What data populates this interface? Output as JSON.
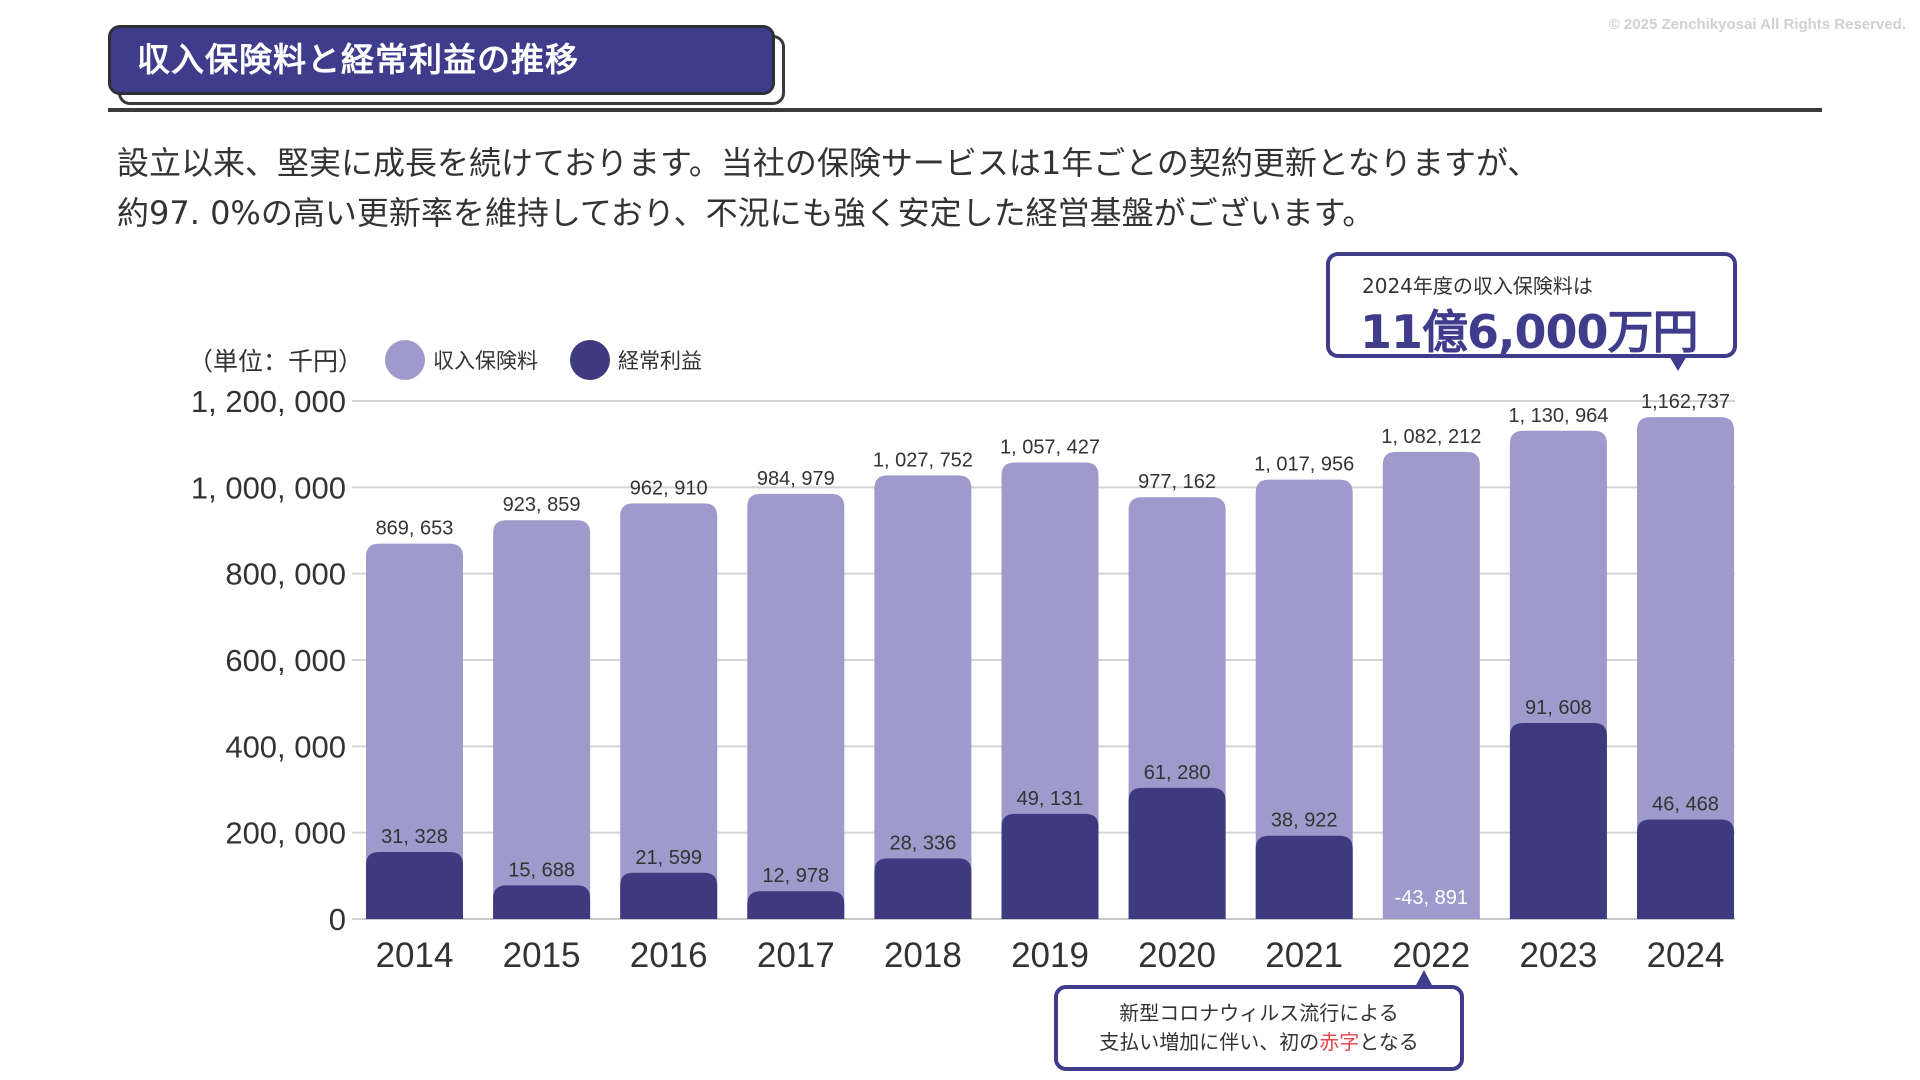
{
  "copyright": "© 2025 Zenchikyosai All Rights Reserved.",
  "title": "収入保険料と経常利益の推移",
  "lead": {
    "line1": "設立以来、堅実に成長を続けております。当社の保険サービスは1年ごとの契約更新となりますが、",
    "line2": "約97. 0%の高い更新率を維持しており、不況にも強く安定した経営基盤がございます。"
  },
  "callout": {
    "sub": "2024年度の収入保険料は",
    "main": "11億6,000万円"
  },
  "note": {
    "line1": "新型コロナウィルス流行による",
    "line2_pre": "支払い増加に伴い、初の",
    "line2_red": "赤字",
    "line2_post": "となる",
    "target_year": "2022"
  },
  "colors": {
    "premium": "#9e9acb",
    "profit": "#3d3a80",
    "accent": "#3f3c8c",
    "deficit_text": "#e6454f",
    "grid": "#d4d4d4",
    "text": "#333333"
  },
  "chart_data": {
    "type": "bar",
    "title": "収入保険料と経常利益の推移",
    "unit_label": "（単位：千円）",
    "xlabel": "",
    "ylabel": "千円",
    "ylim": [
      0,
      1200000
    ],
    "yticks": [
      0,
      200000,
      400000,
      600000,
      800000,
      1000000,
      1200000
    ],
    "ytick_labels": [
      "0",
      "200, 000",
      "400, 000",
      "600, 000",
      "800, 000",
      "1, 000, 000",
      "1, 200, 000"
    ],
    "grid": true,
    "legend_position": "top-left",
    "categories": [
      "2014",
      "2015",
      "2016",
      "2017",
      "2018",
      "2019",
      "2020",
      "2021",
      "2022",
      "2023",
      "2024"
    ],
    "series": [
      {
        "name": "収入保険料",
        "values": [
          869653,
          923859,
          962910,
          984979,
          1027752,
          1057427,
          977162,
          1017956,
          1082212,
          1130964,
          1162737
        ],
        "labels": [
          "869, 653",
          "923, 859",
          "962, 910",
          "984, 979",
          "1, 027, 752",
          "1, 057, 427",
          "977, 162",
          "1, 017, 956",
          "1, 082, 212",
          "1, 130, 964",
          "1,162,737"
        ]
      },
      {
        "name": "経常利益",
        "values": [
          31328,
          15688,
          21599,
          12978,
          28336,
          49131,
          61280,
          38922,
          -43891,
          91608,
          46468
        ],
        "labels": [
          "31, 328",
          "15, 688",
          "21, 599",
          "12, 978",
          "28, 336",
          "49, 131",
          "61, 280",
          "38, 922",
          "-43, 891",
          "91, 608",
          "46, 468"
        ]
      }
    ]
  }
}
